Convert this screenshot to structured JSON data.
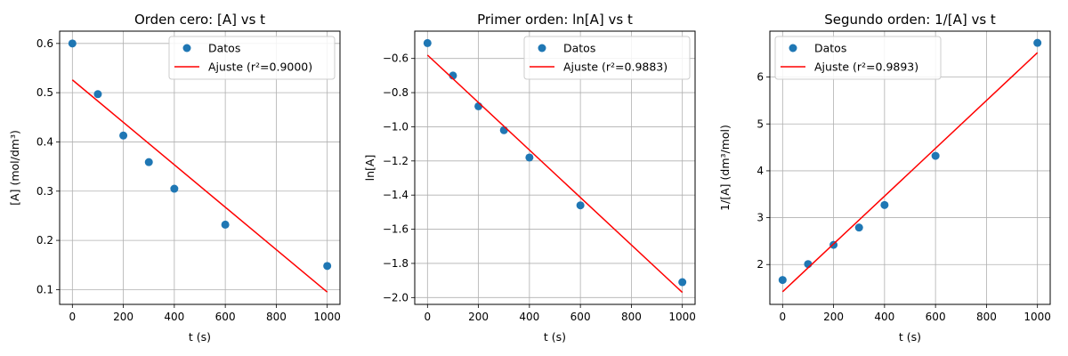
{
  "chart_data": [
    {
      "type": "scatter",
      "title": "Orden cero: [A] vs t",
      "xlabel": "t (s)",
      "ylabel": "[A] (mol/dm³)",
      "xlim": [
        -50,
        1050
      ],
      "ylim": [
        0.07,
        0.625
      ],
      "xticks": [
        0,
        200,
        400,
        600,
        800,
        1000
      ],
      "yticks": [
        0.1,
        0.2,
        0.3,
        0.4,
        0.5,
        0.6
      ],
      "ytick_labels": [
        "0.1",
        "0.2",
        "0.3",
        "0.4",
        "0.5",
        "0.6"
      ],
      "grid": true,
      "legend_position": "top-right",
      "series": [
        {
          "name": "Datos",
          "kind": "points",
          "color": "#1f77b4",
          "x": [
            0,
            100,
            200,
            300,
            400,
            600,
            1000
          ],
          "y": [
            0.6,
            0.497,
            0.413,
            0.359,
            0.305,
            0.232,
            0.148
          ]
        },
        {
          "name": "Ajuste (r²=0.9000)",
          "kind": "line",
          "color": "#ff0000",
          "x": [
            0,
            1000
          ],
          "y": [
            0.526,
            0.095
          ]
        }
      ]
    },
    {
      "type": "scatter",
      "title": "Primer orden: ln[A] vs t",
      "xlabel": "t (s)",
      "ylabel": "ln[A]",
      "xlim": [
        -50,
        1050
      ],
      "ylim": [
        -2.04,
        -0.44
      ],
      "xticks": [
        0,
        200,
        400,
        600,
        800,
        1000
      ],
      "yticks": [
        -2.0,
        -1.8,
        -1.6,
        -1.4,
        -1.2,
        -1.0,
        -0.8,
        -0.6
      ],
      "ytick_labels": [
        "−2.0",
        "−1.8",
        "−1.6",
        "−1.4",
        "−1.2",
        "−1.0",
        "−0.8",
        "−0.6"
      ],
      "grid": true,
      "legend_position": "top-right",
      "series": [
        {
          "name": "Datos",
          "kind": "points",
          "color": "#1f77b4",
          "x": [
            0,
            100,
            200,
            300,
            400,
            600,
            1000
          ],
          "y": [
            -0.51,
            -0.7,
            -0.88,
            -1.02,
            -1.18,
            -1.46,
            -1.91
          ]
        },
        {
          "name": "Ajuste (r²=0.9883)",
          "kind": "line",
          "color": "#ff0000",
          "x": [
            0,
            1000
          ],
          "y": [
            -0.58,
            -1.97
          ]
        }
      ]
    },
    {
      "type": "scatter",
      "title": "Segundo orden: 1/[A] vs t",
      "xlabel": "t (s)",
      "ylabel": "1/[A] (dm³/mol)",
      "xlim": [
        -50,
        1050
      ],
      "ylim": [
        1.15,
        6.98
      ],
      "xticks": [
        0,
        200,
        400,
        600,
        800,
        1000
      ],
      "yticks": [
        2,
        3,
        4,
        5,
        6
      ],
      "ytick_labels": [
        "2",
        "3",
        "4",
        "5",
        "6"
      ],
      "grid": true,
      "legend_position": "top-left",
      "series": [
        {
          "name": "Datos",
          "kind": "points",
          "color": "#1f77b4",
          "x": [
            0,
            100,
            200,
            300,
            400,
            600,
            1000
          ],
          "y": [
            1.67,
            2.01,
            2.42,
            2.79,
            3.27,
            4.32,
            6.73
          ]
        },
        {
          "name": "Ajuste (r²=0.9893)",
          "kind": "line",
          "color": "#ff0000",
          "x": [
            0,
            1000
          ],
          "y": [
            1.42,
            6.52
          ]
        }
      ]
    }
  ]
}
